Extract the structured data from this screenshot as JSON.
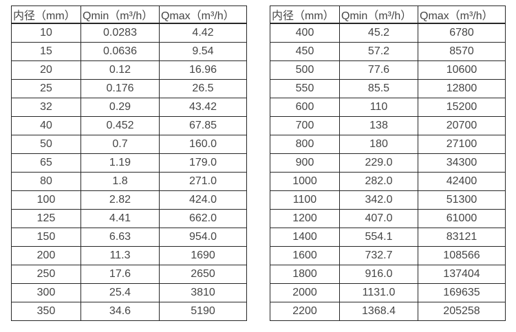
{
  "tables": [
    {
      "name": "small-diameters",
      "headers": [
        "内径（mm）",
        "Qmin（m³/h）",
        "Qmax（m³/h）"
      ],
      "rows": [
        [
          "10",
          "0.0283",
          "4.42"
        ],
        [
          "15",
          "0.0636",
          "9.54"
        ],
        [
          "20",
          "0.12",
          "16.96"
        ],
        [
          "25",
          "0.176",
          "26.5"
        ],
        [
          "32",
          "0.29",
          "43.42"
        ],
        [
          "40",
          "0.452",
          "67.85"
        ],
        [
          "50",
          "0.7",
          "160.0"
        ],
        [
          "65",
          "1.19",
          "179.0"
        ],
        [
          "80",
          "1.8",
          "271.0"
        ],
        [
          "100",
          "2.82",
          "424.0"
        ],
        [
          "125",
          "4.41",
          "662.0"
        ],
        [
          "150",
          "6.63",
          "954.0"
        ],
        [
          "200",
          "11.3",
          "1690"
        ],
        [
          "250",
          "17.6",
          "2650"
        ],
        [
          "300",
          "25.4",
          "3810"
        ],
        [
          "350",
          "34.6",
          "5190"
        ]
      ]
    },
    {
      "name": "large-diameters",
      "headers": [
        "内径（mm）",
        "Qmin（m³/h）",
        "Qmax（m³/h）"
      ],
      "rows": [
        [
          "400",
          "45.2",
          "6780"
        ],
        [
          "450",
          "57.2",
          "8570"
        ],
        [
          "500",
          "77.6",
          "10600"
        ],
        [
          "550",
          "85.5",
          "12800"
        ],
        [
          "600",
          "110",
          "15200"
        ],
        [
          "700",
          "138",
          "20700"
        ],
        [
          "800",
          "180",
          "27100"
        ],
        [
          "900",
          "229.0",
          "34300"
        ],
        [
          "1000",
          "282.0",
          "42400"
        ],
        [
          "1100",
          "342.0",
          "51300"
        ],
        [
          "1200",
          "407.0",
          "61000"
        ],
        [
          "1400",
          "554.1",
          "83121"
        ],
        [
          "1600",
          "732.7",
          "108566"
        ],
        [
          "1800",
          "916.0",
          "137404"
        ],
        [
          "2000",
          "1131.0",
          "169635"
        ],
        [
          "2200",
          "1368.4",
          "205258"
        ]
      ]
    }
  ],
  "colors": {
    "border": "#262626",
    "text": "#454545",
    "background": "#ffffff"
  }
}
